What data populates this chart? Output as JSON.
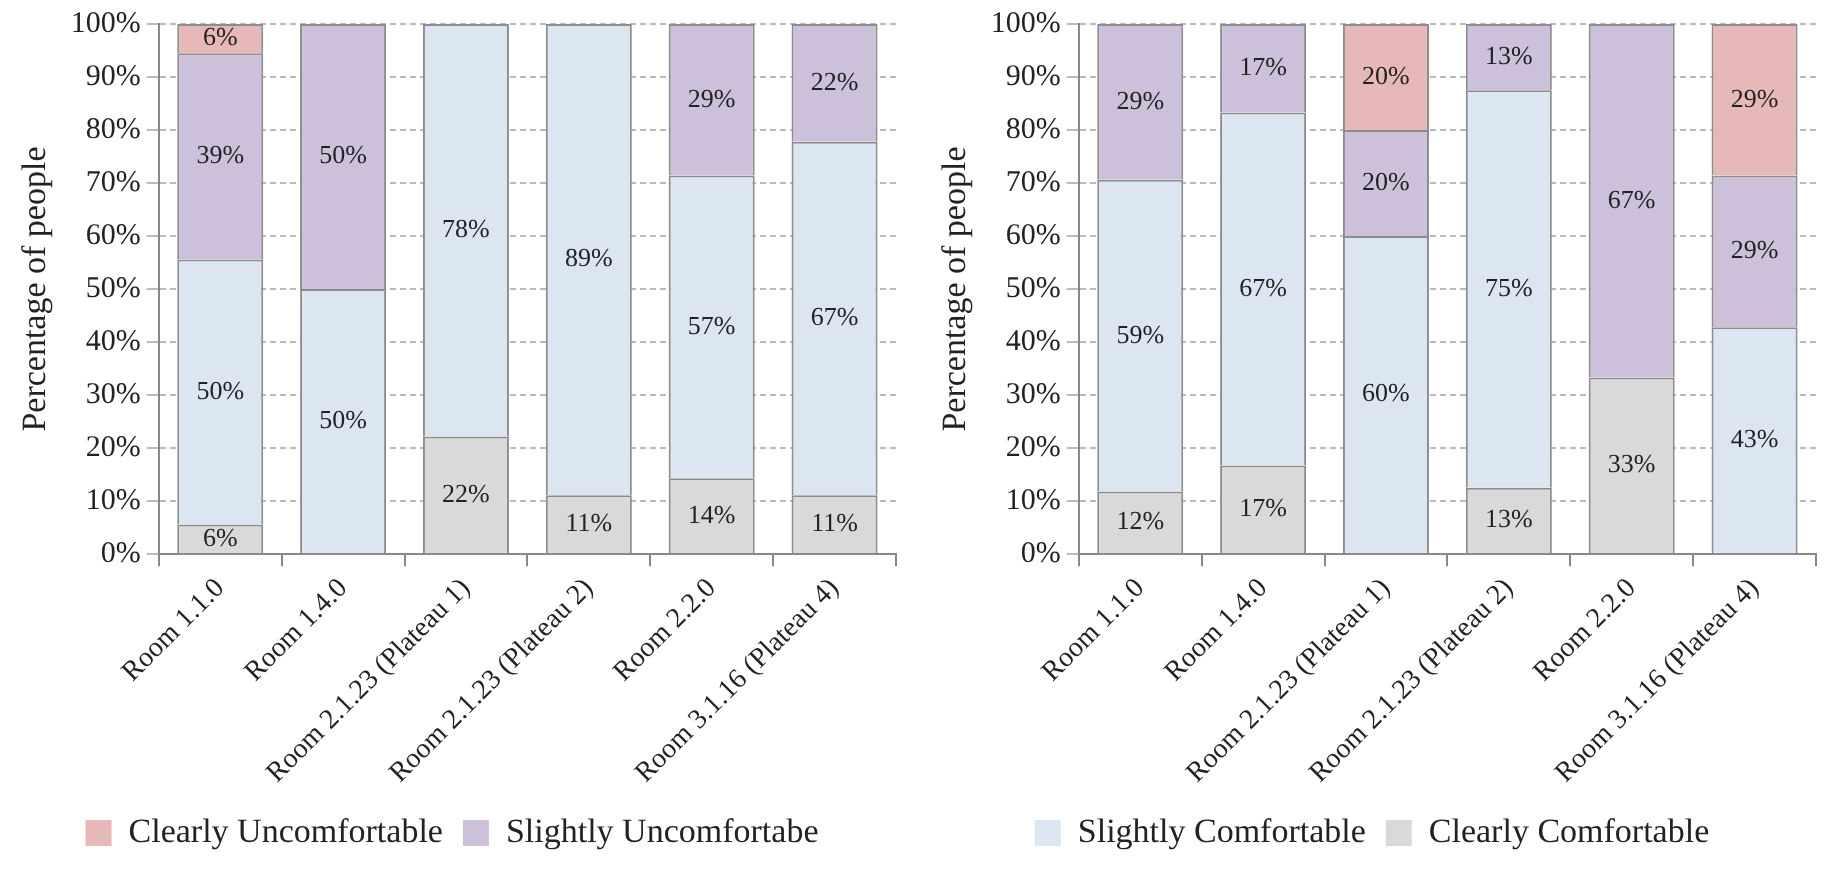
{
  "chart_data": [
    {
      "type": "bar",
      "stacked": true,
      "ylabel": "Percentage of people",
      "grid": "y",
      "legend": "bottom",
      "categories": [
        "Room 1.1.0",
        "Room 1.4.0",
        "Room 2.1.23 (Plateau 1)",
        "Room 2.1.23 (Plateau 2)",
        "Room 2.2.0",
        "Room 3.1.16 (Plateau 4)"
      ],
      "ylim": [
        0,
        100
      ],
      "yticks": [
        {
          "value": 0,
          "label": "0%"
        },
        {
          "value": 10,
          "label": "10%"
        },
        {
          "value": 20,
          "label": "20%"
        },
        {
          "value": 30,
          "label": "30%"
        },
        {
          "value": 40,
          "label": "40%"
        },
        {
          "value": 50,
          "label": "50%"
        },
        {
          "value": 60,
          "label": "60%"
        },
        {
          "value": 70,
          "label": "70%"
        },
        {
          "value": 80,
          "label": "80%"
        },
        {
          "value": 90,
          "label": "90%"
        },
        {
          "value": 100,
          "label": "100%"
        }
      ],
      "series": [
        {
          "color": "#d9d9d9",
          "values": [
            5.6,
            null,
            22.2,
            11.1,
            14.3,
            11.1
          ],
          "value_labels": [
            "6%",
            null,
            "22%",
            "11%",
            "14%",
            "11%"
          ]
        },
        {
          "color": "#dce6f2",
          "values": [
            50,
            50,
            77.8,
            88.9,
            57.1,
            66.7
          ],
          "value_labels": [
            "50%",
            "50%",
            "78%",
            "89%",
            "57%",
            "67%"
          ]
        },
        {
          "name": "Slightly Uncomfortabe",
          "color": "#ccc0da",
          "values": [
            38.9,
            50,
            null,
            null,
            28.6,
            22.2
          ],
          "value_labels": [
            "39%",
            "50%",
            null,
            null,
            "29%",
            "22%"
          ]
        },
        {
          "name": "Clearly Uncomfortable",
          "color": "#e6b9b8",
          "values": [
            5.5,
            null,
            null,
            null,
            null,
            null
          ],
          "value_labels": [
            "6%",
            null,
            null,
            null,
            null,
            null
          ]
        }
      ]
    },
    {
      "type": "bar",
      "stacked": true,
      "ylabel": "Percentage of people",
      "grid": "y",
      "legend": "bottom",
      "categories": [
        "Room 1.1.0",
        "Room 1.4.0",
        "Room 2.1.23 (Plateau 1)",
        "Room 2.1.23 (Plateau 2)",
        "Room 2.2.0",
        "Room 3.1.16 (Plateau 4)"
      ],
      "ylim": [
        0,
        100
      ],
      "yticks": [
        {
          "value": 0,
          "label": "0%"
        },
        {
          "value": 10,
          "label": "10%"
        },
        {
          "value": 20,
          "label": "20%"
        },
        {
          "value": 30,
          "label": "30%"
        },
        {
          "value": 40,
          "label": "40%"
        },
        {
          "value": 50,
          "label": "50%"
        },
        {
          "value": 60,
          "label": "60%"
        },
        {
          "value": 70,
          "label": "70%"
        },
        {
          "value": 80,
          "label": "80%"
        },
        {
          "value": 90,
          "label": "90%"
        },
        {
          "value": 100,
          "label": "100%"
        }
      ],
      "series": [
        {
          "name": "Clearly Comfortable",
          "color": "#d9d9d9",
          "values": [
            11.8,
            16.7,
            null,
            12.5,
            33.3,
            null
          ],
          "value_labels": [
            "12%",
            "17%",
            null,
            "13%",
            "33%",
            null
          ]
        },
        {
          "name": "Slightly Comfortable",
          "color": "#dce6f2",
          "values": [
            58.8,
            66.6,
            60,
            75,
            null,
            42.8
          ],
          "value_labels": [
            "59%",
            "67%",
            "60%",
            "75%",
            null,
            "43%"
          ]
        },
        {
          "color": "#ccc0da",
          "values": [
            29.4,
            16.7,
            20,
            12.5,
            66.7,
            28.6
          ],
          "value_labels": [
            "29%",
            "17%",
            "20%",
            "13%",
            "67%",
            "29%"
          ]
        },
        {
          "color": "#e6b9b8",
          "values": [
            null,
            null,
            20,
            null,
            null,
            28.6
          ],
          "value_labels": [
            null,
            null,
            "20%",
            null,
            null,
            "29%"
          ]
        }
      ]
    }
  ]
}
